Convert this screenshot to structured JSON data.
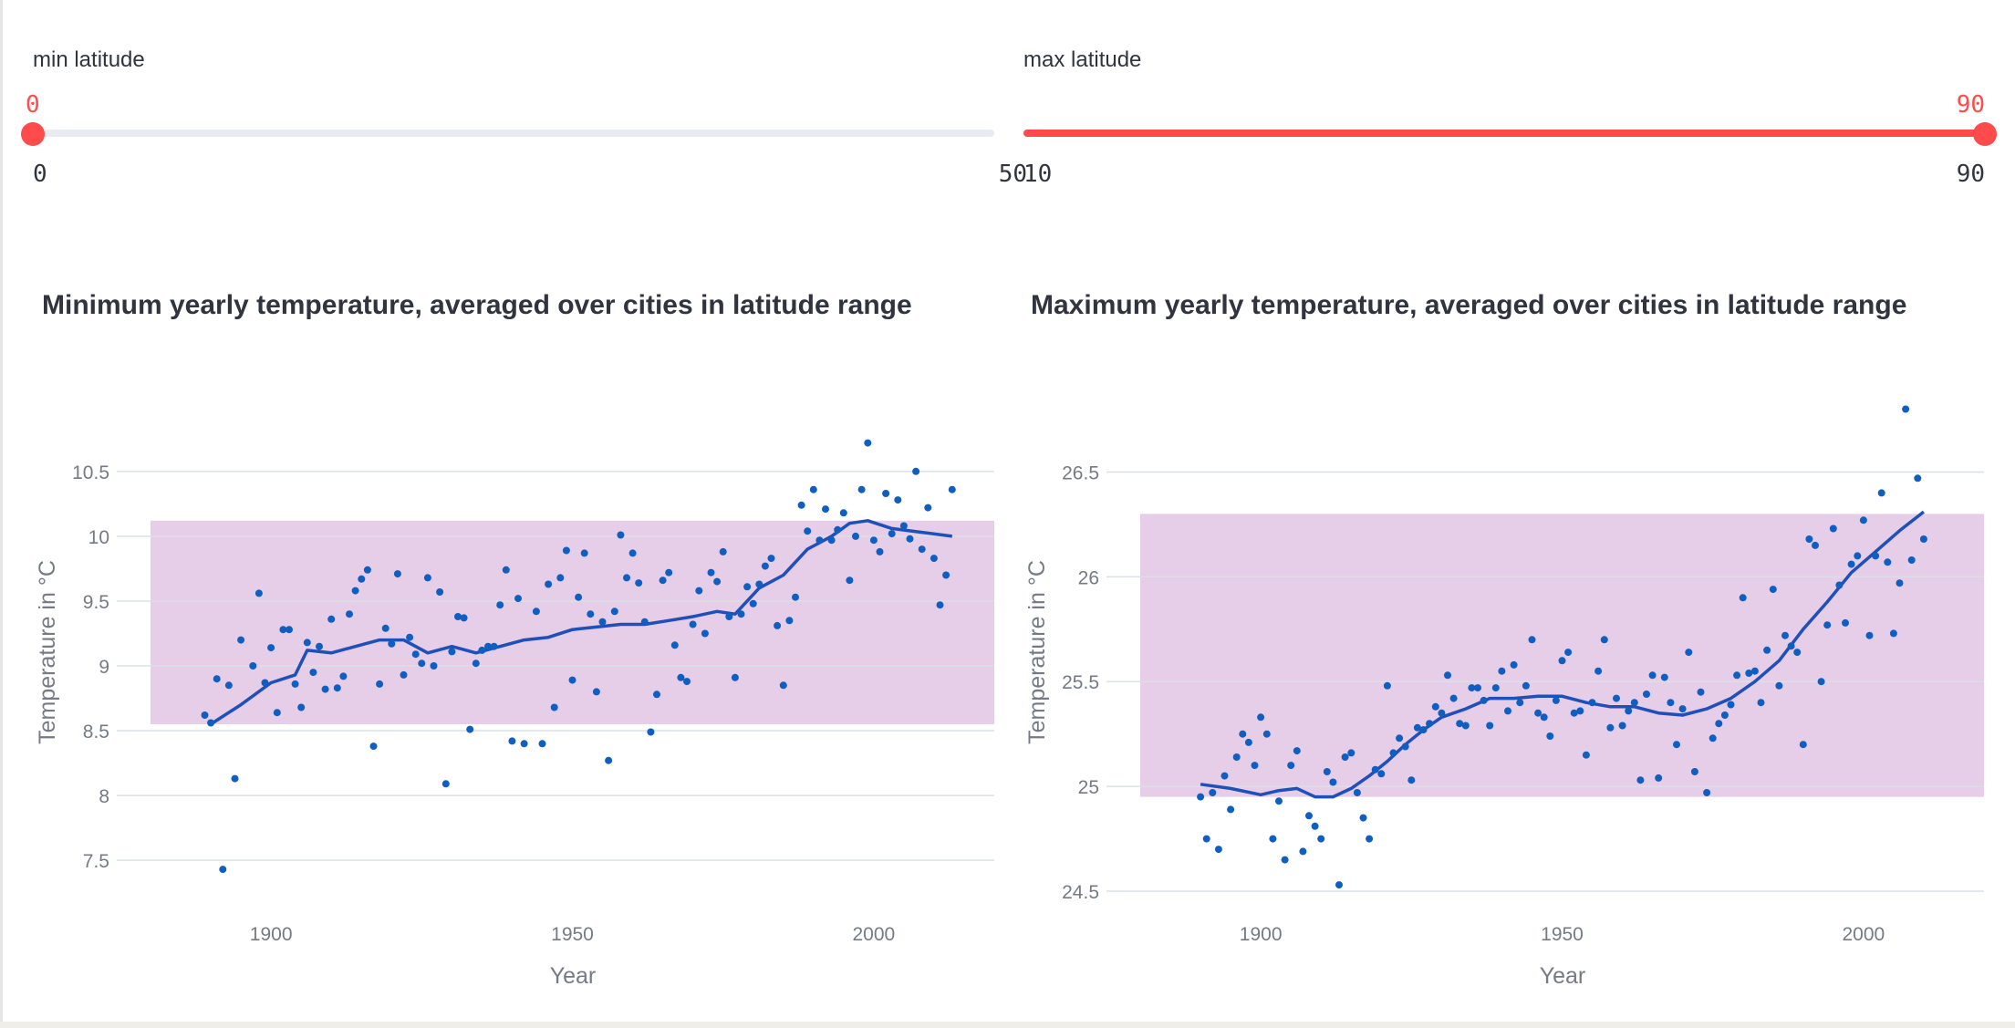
{
  "sliders": [
    {
      "label": "min latitude",
      "value": 0,
      "min": 0,
      "max": 50,
      "value_text": "0",
      "min_text": "0",
      "max_text": "50",
      "fill_from_start": false
    },
    {
      "label": "max latitude",
      "value": 90,
      "min": 10,
      "max": 90,
      "value_text": "90",
      "min_text": "10",
      "max_text": "90",
      "fill_from_start": true
    }
  ],
  "colors": {
    "accent": "#ff4b4b",
    "points": "#0f5fc2",
    "line": "#1f4fb8",
    "band": "#e6cde8"
  },
  "chart_data": [
    {
      "type": "scatter",
      "title": "Minimum yearly temperature, averaged over cities in latitude range",
      "xlabel": "Year",
      "ylabel": "Temperature in °C",
      "xlim": [
        1880,
        2020
      ],
      "ylim": [
        7.1,
        10.9
      ],
      "x_ticks": [
        1900,
        1950,
        2000
      ],
      "y_ticks": [
        7.5,
        8,
        8.5,
        9,
        9.5,
        10,
        10.5
      ],
      "y_tick_labels": [
        "7.5",
        "8",
        "8.5",
        "9",
        "9.5",
        "10",
        "10.5"
      ],
      "grid": true,
      "band": [
        8.55,
        10.12
      ],
      "points": [
        [
          1889,
          8.62
        ],
        [
          1890,
          8.56
        ],
        [
          1891,
          8.9
        ],
        [
          1892,
          7.43
        ],
        [
          1893,
          8.85
        ],
        [
          1894,
          8.13
        ],
        [
          1895,
          9.2
        ],
        [
          1897,
          9.0
        ],
        [
          1898,
          9.56
        ],
        [
          1899,
          8.87
        ],
        [
          1900,
          9.14
        ],
        [
          1901,
          8.64
        ],
        [
          1902,
          9.28
        ],
        [
          1903,
          9.28
        ],
        [
          1904,
          8.86
        ],
        [
          1905,
          8.68
        ],
        [
          1906,
          9.18
        ],
        [
          1907,
          8.95
        ],
        [
          1908,
          9.15
        ],
        [
          1909,
          8.82
        ],
        [
          1910,
          9.36
        ],
        [
          1911,
          8.83
        ],
        [
          1912,
          8.92
        ],
        [
          1913,
          9.4
        ],
        [
          1914,
          9.58
        ],
        [
          1915,
          9.67
        ],
        [
          1916,
          9.74
        ],
        [
          1917,
          8.38
        ],
        [
          1918,
          8.86
        ],
        [
          1919,
          9.29
        ],
        [
          1920,
          9.17
        ],
        [
          1921,
          9.71
        ],
        [
          1922,
          8.93
        ],
        [
          1923,
          9.22
        ],
        [
          1924,
          9.09
        ],
        [
          1925,
          9.02
        ],
        [
          1926,
          9.68
        ],
        [
          1927,
          9.0
        ],
        [
          1928,
          9.57
        ],
        [
          1929,
          8.09
        ],
        [
          1930,
          9.11
        ],
        [
          1931,
          9.38
        ],
        [
          1932,
          9.37
        ],
        [
          1933,
          8.51
        ],
        [
          1934,
          9.02
        ],
        [
          1935,
          9.12
        ],
        [
          1936,
          9.15
        ],
        [
          1937,
          9.15
        ],
        [
          1938,
          9.47
        ],
        [
          1939,
          9.74
        ],
        [
          1940,
          8.42
        ],
        [
          1941,
          9.52
        ],
        [
          1942,
          8.4
        ],
        [
          1944,
          9.42
        ],
        [
          1945,
          8.4
        ],
        [
          1946,
          9.63
        ],
        [
          1947,
          8.68
        ],
        [
          1948,
          9.68
        ],
        [
          1949,
          9.89
        ],
        [
          1950,
          8.89
        ],
        [
          1951,
          9.53
        ],
        [
          1952,
          9.87
        ],
        [
          1953,
          9.4
        ],
        [
          1954,
          8.8
        ],
        [
          1955,
          9.34
        ],
        [
          1956,
          8.27
        ],
        [
          1957,
          9.42
        ],
        [
          1958,
          10.01
        ],
        [
          1959,
          9.68
        ],
        [
          1960,
          9.87
        ],
        [
          1961,
          9.64
        ],
        [
          1962,
          9.34
        ],
        [
          1963,
          8.49
        ],
        [
          1964,
          8.78
        ],
        [
          1965,
          9.66
        ],
        [
          1966,
          9.72
        ],
        [
          1967,
          9.16
        ],
        [
          1968,
          8.91
        ],
        [
          1969,
          8.88
        ],
        [
          1970,
          9.32
        ],
        [
          1971,
          9.58
        ],
        [
          1972,
          9.25
        ],
        [
          1973,
          9.72
        ],
        [
          1974,
          9.65
        ],
        [
          1975,
          9.88
        ],
        [
          1976,
          9.38
        ],
        [
          1977,
          8.91
        ],
        [
          1978,
          9.4
        ],
        [
          1979,
          9.61
        ],
        [
          1980,
          9.48
        ],
        [
          1981,
          9.63
        ],
        [
          1982,
          9.77
        ],
        [
          1983,
          9.83
        ],
        [
          1984,
          9.31
        ],
        [
          1985,
          8.85
        ],
        [
          1986,
          9.35
        ],
        [
          1987,
          9.53
        ],
        [
          1988,
          10.24
        ],
        [
          1989,
          10.04
        ],
        [
          1990,
          10.36
        ],
        [
          1991,
          9.97
        ],
        [
          1992,
          10.21
        ],
        [
          1993,
          9.97
        ],
        [
          1994,
          10.05
        ],
        [
          1995,
          10.18
        ],
        [
          1996,
          9.66
        ],
        [
          1997,
          10.0
        ],
        [
          1998,
          10.36
        ],
        [
          1999,
          10.72
        ],
        [
          2000,
          9.97
        ],
        [
          2001,
          9.88
        ],
        [
          2002,
          10.33
        ],
        [
          2003,
          10.02
        ],
        [
          2004,
          10.28
        ],
        [
          2005,
          10.08
        ],
        [
          2006,
          9.98
        ],
        [
          2007,
          10.5
        ],
        [
          2008,
          9.9
        ],
        [
          2009,
          10.22
        ],
        [
          2010,
          9.83
        ],
        [
          2011,
          9.47
        ],
        [
          2012,
          9.7
        ],
        [
          2013,
          10.36
        ]
      ],
      "trend": [
        [
          1890,
          8.55
        ],
        [
          1895,
          8.7
        ],
        [
          1900,
          8.87
        ],
        [
          1904,
          8.93
        ],
        [
          1906,
          9.12
        ],
        [
          1910,
          9.1
        ],
        [
          1914,
          9.15
        ],
        [
          1918,
          9.2
        ],
        [
          1922,
          9.2
        ],
        [
          1926,
          9.1
        ],
        [
          1930,
          9.15
        ],
        [
          1934,
          9.1
        ],
        [
          1938,
          9.15
        ],
        [
          1942,
          9.2
        ],
        [
          1946,
          9.22
        ],
        [
          1950,
          9.28
        ],
        [
          1954,
          9.3
        ],
        [
          1958,
          9.32
        ],
        [
          1962,
          9.32
        ],
        [
          1966,
          9.35
        ],
        [
          1970,
          9.38
        ],
        [
          1974,
          9.42
        ],
        [
          1977,
          9.4
        ],
        [
          1981,
          9.6
        ],
        [
          1985,
          9.7
        ],
        [
          1989,
          9.9
        ],
        [
          1993,
          10.0
        ],
        [
          1996,
          10.1
        ],
        [
          1999,
          10.12
        ],
        [
          2003,
          10.06
        ],
        [
          2008,
          10.03
        ],
        [
          2013,
          10.0
        ]
      ]
    },
    {
      "type": "scatter",
      "title": "Maximum yearly temperature, averaged over cities in latitude range",
      "xlabel": "Year",
      "ylabel": "Temperature in °C",
      "xlim": [
        1880,
        2020
      ],
      "ylim": [
        24.4,
        26.75
      ],
      "x_ticks": [
        1900,
        1950,
        2000
      ],
      "y_ticks": [
        24.5,
        25,
        25.5,
        26,
        26.5
      ],
      "y_tick_labels": [
        "24.5",
        "25",
        "25.5",
        "26",
        "26.5"
      ],
      "grid": true,
      "band": [
        24.95,
        26.3
      ],
      "points": [
        [
          1890,
          24.95
        ],
        [
          1891,
          24.75
        ],
        [
          1892,
          24.97
        ],
        [
          1893,
          24.7
        ],
        [
          1894,
          25.05
        ],
        [
          1895,
          24.89
        ],
        [
          1896,
          25.14
        ],
        [
          1897,
          25.25
        ],
        [
          1898,
          25.21
        ],
        [
          1899,
          25.1
        ],
        [
          1900,
          25.33
        ],
        [
          1901,
          25.25
        ],
        [
          1902,
          24.75
        ],
        [
          1903,
          24.93
        ],
        [
          1904,
          24.65
        ],
        [
          1905,
          25.1
        ],
        [
          1906,
          25.17
        ],
        [
          1907,
          24.69
        ],
        [
          1908,
          24.86
        ],
        [
          1909,
          24.81
        ],
        [
          1910,
          24.75
        ],
        [
          1911,
          25.07
        ],
        [
          1912,
          25.02
        ],
        [
          1913,
          24.53
        ],
        [
          1914,
          25.14
        ],
        [
          1915,
          25.16
        ],
        [
          1916,
          24.97
        ],
        [
          1917,
          24.85
        ],
        [
          1918,
          24.75
        ],
        [
          1919,
          25.08
        ],
        [
          1920,
          25.06
        ],
        [
          1921,
          25.48
        ],
        [
          1922,
          25.16
        ],
        [
          1923,
          25.23
        ],
        [
          1924,
          25.19
        ],
        [
          1925,
          25.03
        ],
        [
          1926,
          25.28
        ],
        [
          1927,
          25.27
        ],
        [
          1928,
          25.3
        ],
        [
          1929,
          25.38
        ],
        [
          1930,
          25.35
        ],
        [
          1931,
          25.53
        ],
        [
          1932,
          25.42
        ],
        [
          1933,
          25.3
        ],
        [
          1934,
          25.29
        ],
        [
          1935,
          25.47
        ],
        [
          1936,
          25.47
        ],
        [
          1937,
          25.41
        ],
        [
          1938,
          25.29
        ],
        [
          1939,
          25.47
        ],
        [
          1940,
          25.55
        ],
        [
          1941,
          25.36
        ],
        [
          1942,
          25.58
        ],
        [
          1943,
          25.4
        ],
        [
          1944,
          25.48
        ],
        [
          1945,
          25.7
        ],
        [
          1946,
          25.35
        ],
        [
          1947,
          25.33
        ],
        [
          1948,
          25.24
        ],
        [
          1949,
          25.41
        ],
        [
          1950,
          25.6
        ],
        [
          1951,
          25.64
        ],
        [
          1952,
          25.35
        ],
        [
          1953,
          25.36
        ],
        [
          1954,
          25.15
        ],
        [
          1955,
          25.4
        ],
        [
          1956,
          25.55
        ],
        [
          1957,
          25.7
        ],
        [
          1958,
          25.28
        ],
        [
          1959,
          25.42
        ],
        [
          1960,
          25.29
        ],
        [
          1961,
          25.36
        ],
        [
          1962,
          25.4
        ],
        [
          1963,
          25.03
        ],
        [
          1964,
          25.44
        ],
        [
          1965,
          25.53
        ],
        [
          1966,
          25.04
        ],
        [
          1967,
          25.52
        ],
        [
          1968,
          25.4
        ],
        [
          1969,
          25.2
        ],
        [
          1970,
          25.37
        ],
        [
          1971,
          25.64
        ],
        [
          1972,
          25.07
        ],
        [
          1973,
          25.45
        ],
        [
          1974,
          24.97
        ],
        [
          1975,
          25.23
        ],
        [
          1976,
          25.3
        ],
        [
          1977,
          25.34
        ],
        [
          1978,
          25.39
        ],
        [
          1979,
          25.53
        ],
        [
          1980,
          25.9
        ],
        [
          1981,
          25.54
        ],
        [
          1982,
          25.55
        ],
        [
          1983,
          25.4
        ],
        [
          1984,
          25.65
        ],
        [
          1985,
          25.94
        ],
        [
          1986,
          25.48
        ],
        [
          1987,
          25.72
        ],
        [
          1988,
          25.67
        ],
        [
          1989,
          25.64
        ],
        [
          1990,
          25.2
        ],
        [
          1991,
          26.18
        ],
        [
          1992,
          26.15
        ],
        [
          1993,
          25.5
        ],
        [
          1994,
          25.77
        ],
        [
          1995,
          26.23
        ],
        [
          1996,
          25.96
        ],
        [
          1997,
          25.78
        ],
        [
          1998,
          26.06
        ],
        [
          1999,
          26.1
        ],
        [
          2000,
          26.27
        ],
        [
          2001,
          25.72
        ],
        [
          2002,
          26.1
        ],
        [
          2003,
          26.4
        ],
        [
          2004,
          26.07
        ],
        [
          2005,
          25.73
        ],
        [
          2006,
          25.97
        ],
        [
          2007,
          26.8
        ],
        [
          2008,
          26.08
        ],
        [
          2009,
          26.47
        ],
        [
          2010,
          26.18
        ]
      ],
      "trend": [
        [
          1890,
          25.01
        ],
        [
          1895,
          24.99
        ],
        [
          1900,
          24.96
        ],
        [
          1903,
          24.98
        ],
        [
          1906,
          24.99
        ],
        [
          1909,
          24.95
        ],
        [
          1912,
          24.95
        ],
        [
          1915,
          24.99
        ],
        [
          1918,
          25.05
        ],
        [
          1921,
          25.12
        ],
        [
          1924,
          25.2
        ],
        [
          1927,
          25.27
        ],
        [
          1930,
          25.33
        ],
        [
          1934,
          25.37
        ],
        [
          1938,
          25.42
        ],
        [
          1942,
          25.42
        ],
        [
          1946,
          25.43
        ],
        [
          1950,
          25.43
        ],
        [
          1954,
          25.4
        ],
        [
          1958,
          25.38
        ],
        [
          1962,
          25.38
        ],
        [
          1966,
          25.35
        ],
        [
          1970,
          25.34
        ],
        [
          1974,
          25.37
        ],
        [
          1978,
          25.42
        ],
        [
          1982,
          25.5
        ],
        [
          1986,
          25.6
        ],
        [
          1990,
          25.75
        ],
        [
          1994,
          25.88
        ],
        [
          1998,
          26.02
        ],
        [
          2002,
          26.12
        ],
        [
          2006,
          26.22
        ],
        [
          2010,
          26.31
        ]
      ]
    }
  ]
}
